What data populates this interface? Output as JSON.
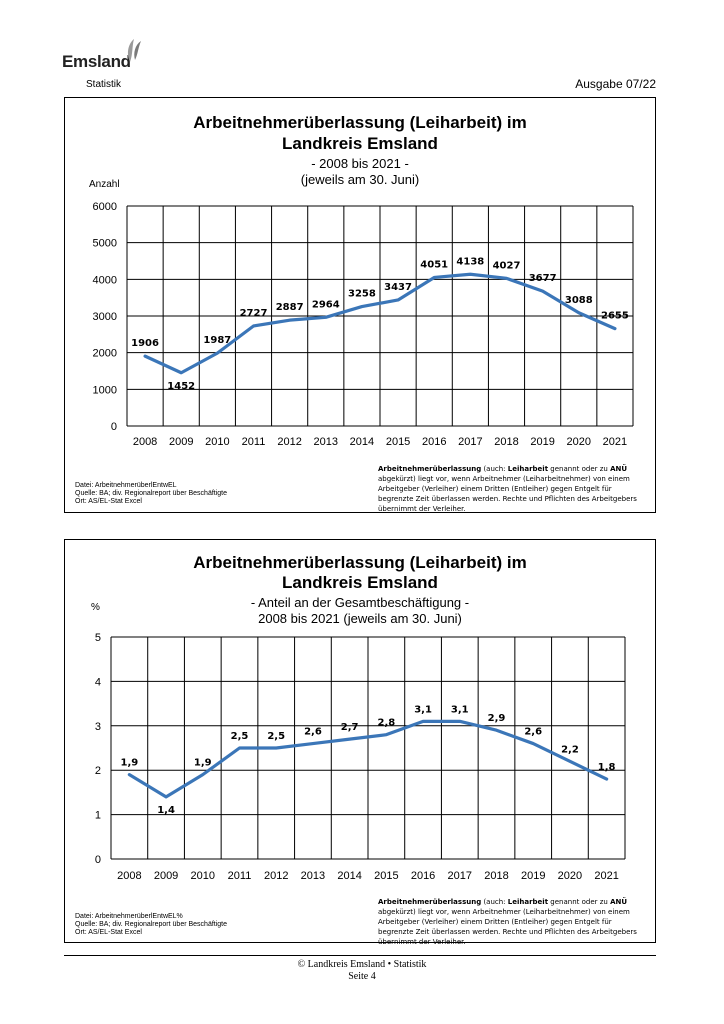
{
  "header": {
    "logo_text": "Emsland",
    "subtitle": "Statistik",
    "edition": "Ausgabe 07/22"
  },
  "note": {
    "term": "Arbeitnehmerüberlassung",
    "part1": " (auch: ",
    "alias": "Leiharbeit",
    "part2": " genannt oder zu ",
    "abbr": "ANÜ",
    "part3": " abgekürzt) liegt vor, wenn Arbeitnehmer (Leiharbeitnehmer) von einem Arbeitgeber (Verleiher) einem Dritten (Entleiher) gegen Entgelt für begrenzte Zeit überlassen werden. Rechte und Pflichten des Arbeitgebers übernimmt der Verleiher."
  },
  "footer": {
    "line1": "© Landkreis Emsland • Statistik",
    "line2": "Seite 4"
  },
  "chart_data": [
    {
      "type": "line",
      "title": "Arbeitnehmerüberlassung (Leiharbeit) im",
      "title2": "Landkreis Emsland",
      "subtitle": "- 2008 bis 2021 -",
      "subtitle2": "(jeweils am 30. Juni)",
      "ylabel": "Anzahl",
      "xlabel": "",
      "categories": [
        "2008",
        "2009",
        "2010",
        "2011",
        "2012",
        "2013",
        "2014",
        "2015",
        "2016",
        "2017",
        "2018",
        "2019",
        "2020",
        "2021"
      ],
      "values": [
        1906,
        1452,
        1987,
        2727,
        2887,
        2964,
        3258,
        3437,
        4051,
        4138,
        4027,
        3677,
        3088,
        2655
      ],
      "value_labels": [
        "1906",
        "1452",
        "1987",
        "2727",
        "2887",
        "2964",
        "3258",
        "3437",
        "4051",
        "4138",
        "4027",
        "3677",
        "3088",
        "2655"
      ],
      "ylim": [
        0,
        6000
      ],
      "yticks": [
        0,
        1000,
        2000,
        3000,
        4000,
        5000,
        6000
      ],
      "ytick_labels": [
        "0",
        "1000",
        "2000",
        "3000",
        "4000",
        "5000",
        "6000"
      ],
      "grid": true,
      "color": "#3b76b8",
      "source_lines": [
        "Datei: ArbeitnehmerüberlEntwEL",
        "Quelle: BA; div. Regionalreport über Beschäftigte",
        "Ort: AS/EL-Stat Excel"
      ]
    },
    {
      "type": "line",
      "title": "Arbeitnehmerüberlassung (Leiharbeit) im",
      "title2": "Landkreis Emsland",
      "subtitle": "- Anteil an der Gesamtbeschäftigung -",
      "subtitle2": "2008 bis 2021 (jeweils am 30. Juni)",
      "ylabel": "%",
      "xlabel": "",
      "categories": [
        "2008",
        "2009",
        "2010",
        "2011",
        "2012",
        "2013",
        "2014",
        "2015",
        "2016",
        "2017",
        "2018",
        "2019",
        "2020",
        "2021"
      ],
      "values": [
        1.9,
        1.4,
        1.9,
        2.5,
        2.5,
        2.6,
        2.7,
        2.8,
        3.1,
        3.1,
        2.9,
        2.6,
        2.2,
        1.8
      ],
      "value_labels": [
        "1,9",
        "1,4",
        "1,9",
        "2,5",
        "2,5",
        "2,6",
        "2,7",
        "2,8",
        "3,1",
        "3,1",
        "2,9",
        "2,6",
        "2,2",
        "1,8"
      ],
      "ylim": [
        0,
        5
      ],
      "yticks": [
        0,
        1,
        2,
        3,
        4,
        5
      ],
      "ytick_labels": [
        "0",
        "1",
        "2",
        "3",
        "4",
        "5"
      ],
      "grid": true,
      "color": "#3b76b8",
      "source_lines": [
        "Datei: ArbeitnehmerüberlEntwEL%",
        "Quelle: BA; div. Regionalreport über Beschäftigte",
        "Ort: AS/EL-Stat Excel"
      ]
    }
  ]
}
